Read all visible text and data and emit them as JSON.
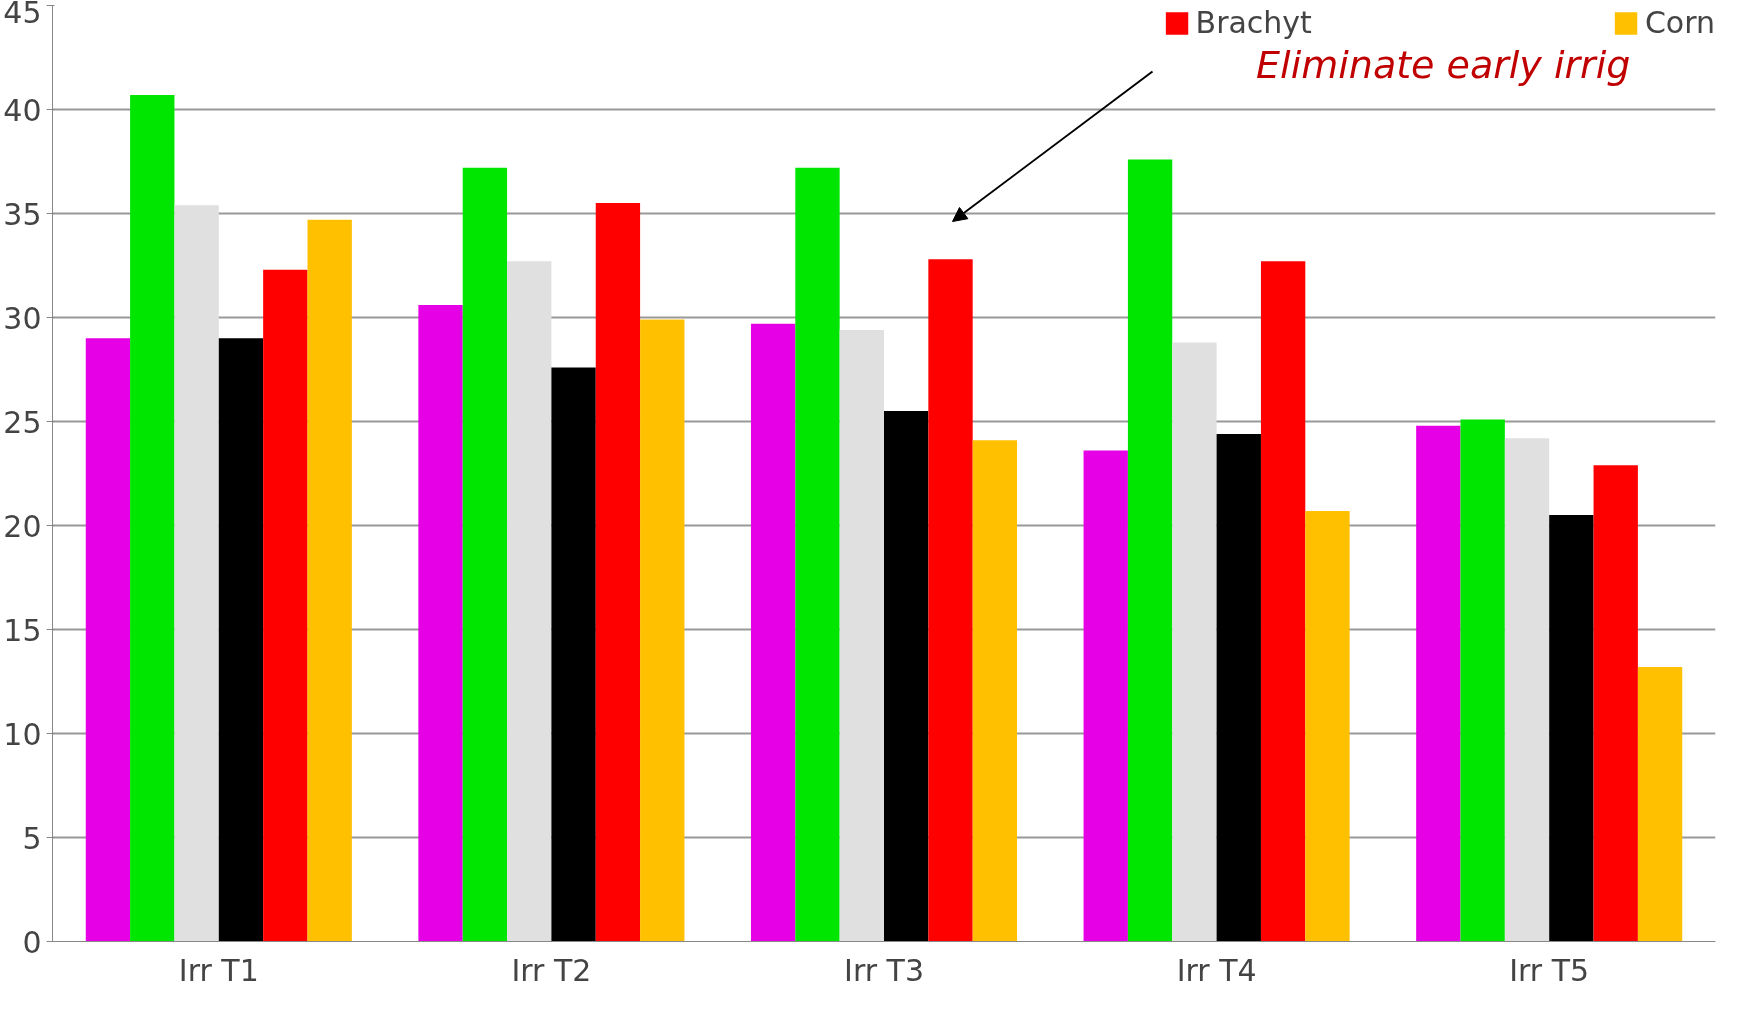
{
  "chart_data": {
    "type": "bar",
    "categories": [
      "Irr T1",
      "Irr T2",
      "Irr T3",
      "Irr T4",
      "Irr T5"
    ],
    "series": [
      {
        "color": "#e600e6",
        "values": [
          29.0,
          30.6,
          29.7,
          23.6,
          24.8
        ]
      },
      {
        "color": "#00e600",
        "values": [
          40.7,
          37.2,
          37.2,
          37.6,
          25.1
        ]
      },
      {
        "color": "#e0e0e0",
        "values": [
          35.4,
          32.7,
          29.4,
          28.8,
          24.2
        ]
      },
      {
        "color": "#000000",
        "values": [
          29.0,
          27.6,
          25.5,
          24.4,
          20.5
        ]
      },
      {
        "name": "Brachyt",
        "color": "#ff0000",
        "values": [
          32.3,
          35.5,
          32.8,
          32.7,
          22.9
        ]
      },
      {
        "name": "Corn",
        "color": "#ffc000",
        "values": [
          34.7,
          29.9,
          24.1,
          20.7,
          13.2
        ]
      }
    ],
    "ylim": [
      0,
      45
    ],
    "yticks": [
      0,
      5,
      10,
      15,
      20,
      25,
      30,
      35,
      40,
      45
    ],
    "grid": "y",
    "legend": "top",
    "annotations": [
      "Eliminate  early irrig"
    ]
  }
}
